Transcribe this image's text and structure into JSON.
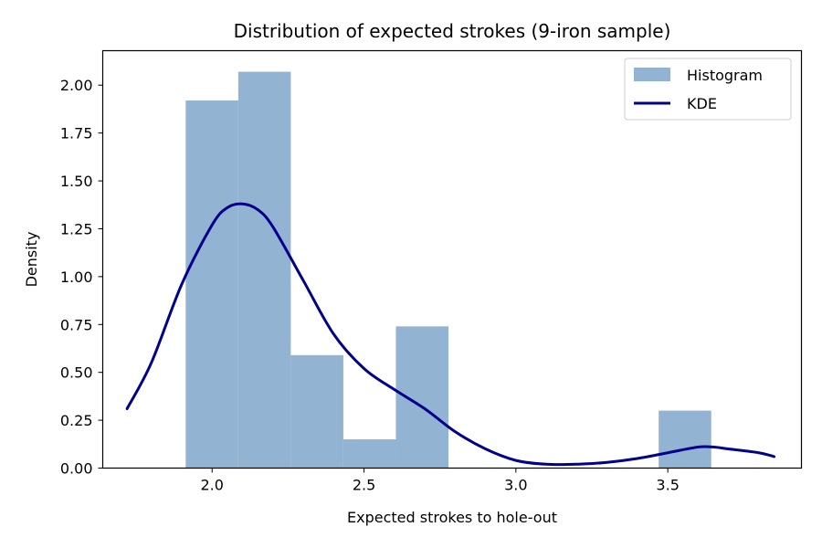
{
  "chart_data": {
    "type": "histogram",
    "title": "Distribution of expected strokes (9-iron sample)",
    "xlabel": "Expected strokes to hole-out",
    "ylabel": "Density",
    "xlim": [
      1.64,
      3.94
    ],
    "ylim": [
      0,
      2.18
    ],
    "xticks": [
      2.0,
      2.5,
      3.0,
      3.5
    ],
    "xtick_labels": [
      "2.0",
      "2.5",
      "3.0",
      "3.5"
    ],
    "yticks": [
      0,
      0.25,
      0.5,
      0.75,
      1.0,
      1.25,
      1.5,
      1.75,
      2.0
    ],
    "ytick_labels": [
      "0.00",
      "0.25",
      "0.50",
      "0.75",
      "1.00",
      "1.25",
      "1.50",
      "1.75",
      "2.00"
    ],
    "grid": false,
    "legend_position": "top-right",
    "colors": {
      "histogram": "#92b3d2",
      "kde": "#00008b"
    },
    "series": [
      {
        "name": "Histogram",
        "kind": "bars",
        "bin_edges": [
          1.913,
          2.086,
          2.259,
          2.432,
          2.605,
          2.778,
          2.951,
          3.124,
          3.297,
          3.47,
          3.643
        ],
        "values": [
          1.92,
          2.07,
          0.59,
          0.15,
          0.74,
          0,
          0,
          0,
          0,
          0.3
        ]
      },
      {
        "name": "KDE",
        "kind": "line",
        "x": [
          1.72,
          1.8,
          1.9,
          2.0,
          2.05,
          2.1,
          2.15,
          2.2,
          2.3,
          2.4,
          2.5,
          2.6,
          2.7,
          2.8,
          2.9,
          3.0,
          3.1,
          3.2,
          3.3,
          3.4,
          3.5,
          3.6,
          3.65,
          3.7,
          3.8,
          3.85
        ],
        "y": [
          0.31,
          0.55,
          0.96,
          1.27,
          1.36,
          1.38,
          1.35,
          1.26,
          0.98,
          0.7,
          0.52,
          0.41,
          0.31,
          0.19,
          0.1,
          0.04,
          0.02,
          0.02,
          0.03,
          0.05,
          0.08,
          0.11,
          0.11,
          0.1,
          0.08,
          0.06
        ]
      }
    ]
  }
}
